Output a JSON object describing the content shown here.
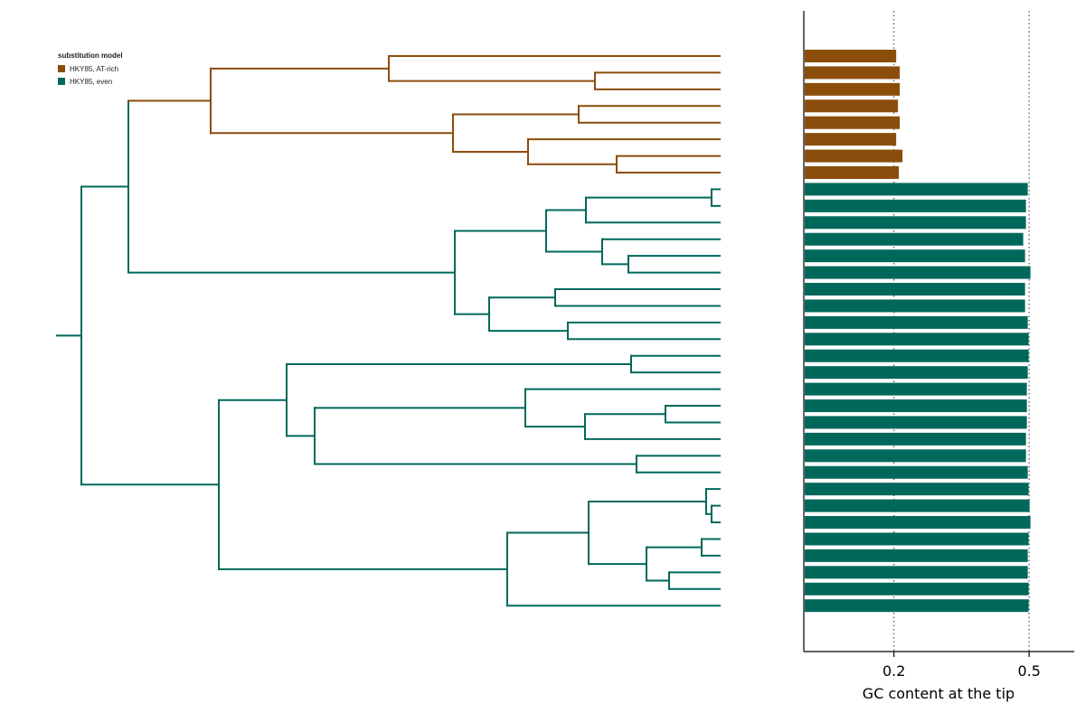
{
  "legend": {
    "title": "substitution model",
    "items": [
      {
        "label": "HKY85, AT-rich",
        "color": "#8b4d0c"
      },
      {
        "label": "HKY85, even",
        "color": "#00685b"
      }
    ]
  },
  "chart_data": [
    {
      "type": "dendrogram",
      "title": "",
      "tip_count": 34,
      "clades": [
        {
          "model": "HKY85, AT-rich",
          "tips": 8
        },
        {
          "model": "HKY85, even",
          "tips": 26
        }
      ],
      "colors": {
        "HKY85, AT-rich": "#8b4d0c",
        "HKY85, even": "#00685b"
      }
    },
    {
      "type": "bar",
      "orientation": "horizontal",
      "xlabel": "GC content at the tip",
      "ylabel": "",
      "xlim": [
        0.0,
        0.6
      ],
      "xticks": [
        0.2,
        0.5
      ],
      "xtick_labels": [
        "0.2",
        "0.5"
      ],
      "grid": "vertical dotted at ticks",
      "series": [
        {
          "name": "HKY85, AT-rich",
          "color": "#8b4d0c",
          "values": [
            0.205,
            0.213,
            0.213,
            0.209,
            0.213,
            0.205,
            0.219,
            0.211
          ]
        },
        {
          "name": "HKY85, even",
          "color": "#00685b",
          "values": [
            0.497,
            0.493,
            0.493,
            0.487,
            0.491,
            0.503,
            0.491,
            0.491,
            0.497,
            0.499,
            0.499,
            0.497,
            0.495,
            0.495,
            0.495,
            0.493,
            0.493,
            0.497,
            0.499,
            0.501,
            0.503,
            0.499,
            0.497,
            0.497,
            0.499,
            0.499
          ]
        }
      ]
    }
  ]
}
